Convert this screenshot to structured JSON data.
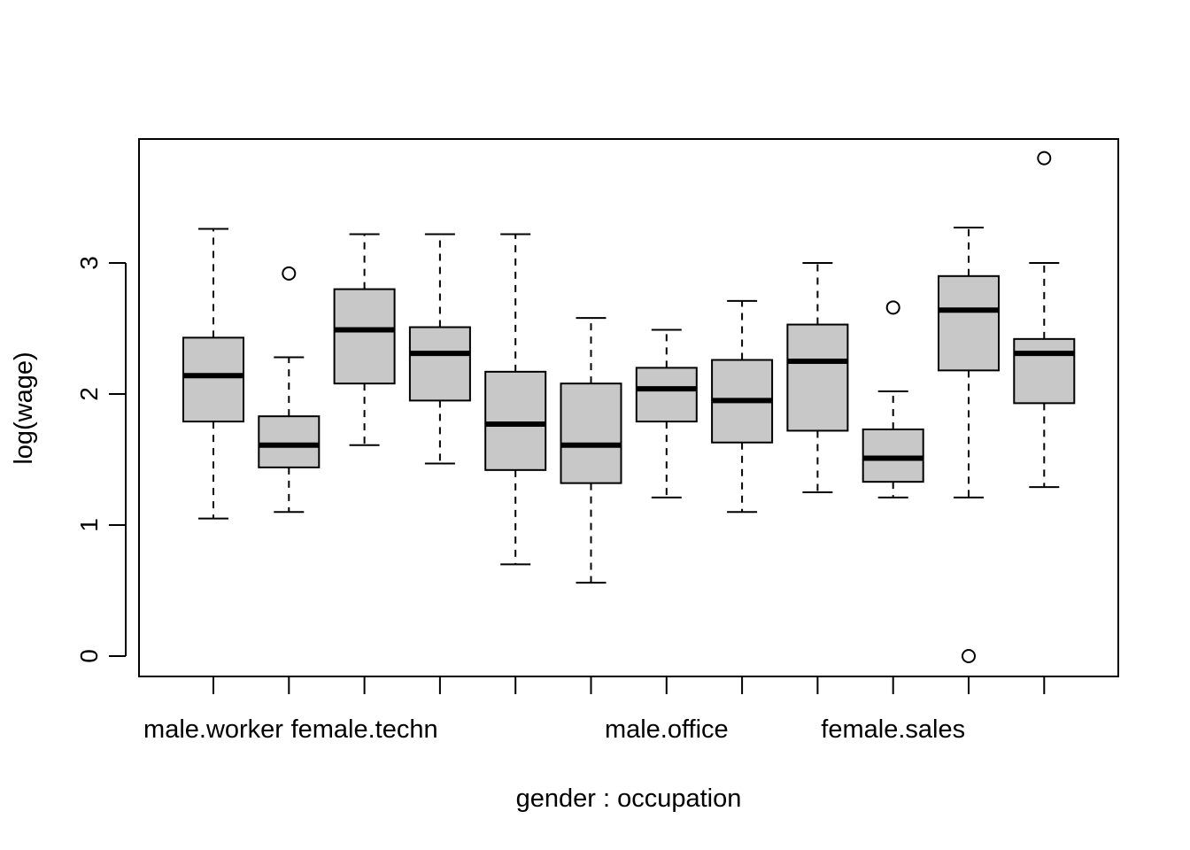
{
  "chart_data": {
    "type": "boxplot",
    "xlabel": "gender : occupation",
    "ylabel": "log(wage)",
    "ylim": [
      -0.15,
      3.9
    ],
    "y_ticks": [
      0,
      1,
      2,
      3
    ],
    "x_tick_labels": [
      "male.worker",
      "",
      "female.techn",
      "",
      "",
      "",
      "male.office",
      "",
      "",
      "female.sales",
      "",
      ""
    ],
    "box_fill": "#c8c8c8",
    "line_color": "#000000",
    "boxes": [
      {
        "index": 1,
        "whisker_low": 1.05,
        "q1": 1.79,
        "median": 2.14,
        "q3": 2.43,
        "whisker_high": 3.26,
        "outliers": []
      },
      {
        "index": 2,
        "whisker_low": 1.1,
        "q1": 1.44,
        "median": 1.61,
        "q3": 1.83,
        "whisker_high": 2.28,
        "outliers": [
          2.92
        ]
      },
      {
        "index": 3,
        "whisker_low": 1.61,
        "q1": 2.08,
        "median": 2.49,
        "q3": 2.8,
        "whisker_high": 3.22,
        "outliers": []
      },
      {
        "index": 4,
        "whisker_low": 1.47,
        "q1": 1.95,
        "median": 2.31,
        "q3": 2.51,
        "whisker_high": 3.22,
        "outliers": []
      },
      {
        "index": 5,
        "whisker_low": 0.7,
        "q1": 1.42,
        "median": 1.77,
        "q3": 2.17,
        "whisker_high": 3.22,
        "outliers": []
      },
      {
        "index": 6,
        "whisker_low": 0.56,
        "q1": 1.32,
        "median": 1.61,
        "q3": 2.08,
        "whisker_high": 2.58,
        "outliers": []
      },
      {
        "index": 7,
        "whisker_low": 1.21,
        "q1": 1.79,
        "median": 2.04,
        "q3": 2.2,
        "whisker_high": 2.49,
        "outliers": []
      },
      {
        "index": 8,
        "whisker_low": 1.1,
        "q1": 1.63,
        "median": 1.95,
        "q3": 2.26,
        "whisker_high": 2.71,
        "outliers": []
      },
      {
        "index": 9,
        "whisker_low": 1.25,
        "q1": 1.72,
        "median": 2.25,
        "q3": 2.53,
        "whisker_high": 3.0,
        "outliers": []
      },
      {
        "index": 10,
        "whisker_low": 1.21,
        "q1": 1.33,
        "median": 1.51,
        "q3": 1.73,
        "whisker_high": 2.02,
        "outliers": [
          2.66
        ]
      },
      {
        "index": 11,
        "whisker_low": 1.21,
        "q1": 2.18,
        "median": 2.64,
        "q3": 2.9,
        "whisker_high": 3.27,
        "outliers": [
          0.0
        ]
      },
      {
        "index": 12,
        "whisker_low": 1.29,
        "q1": 1.93,
        "median": 2.31,
        "q3": 2.42,
        "whisker_high": 3.0,
        "outliers": [
          3.8
        ]
      }
    ]
  }
}
